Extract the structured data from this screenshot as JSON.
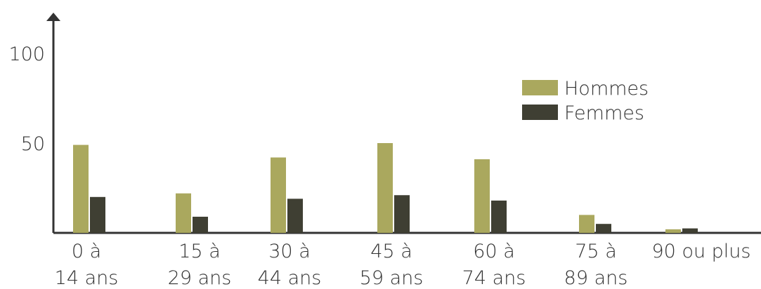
{
  "chart_data": {
    "type": "bar",
    "categories": [
      [
        "0 à",
        "14 ans"
      ],
      [
        "15 à",
        "29 ans"
      ],
      [
        "30 à",
        "44 ans"
      ],
      [
        "45 à",
        "59 ans"
      ],
      [
        "60 à",
        "74 ans"
      ],
      [
        "75 à",
        "89 ans"
      ],
      [
        "90 ou plus"
      ]
    ],
    "series": [
      {
        "name": "Hommes",
        "color": "#aaa85e",
        "values": [
          49,
          22,
          42,
          50,
          41,
          10,
          2
        ]
      },
      {
        "name": "Femmes",
        "color": "#3f3f33",
        "values": [
          20,
          9,
          19,
          21,
          18,
          5,
          2.5
        ]
      }
    ],
    "yticks": [
      50,
      100
    ],
    "ylim": [
      0,
      120
    ],
    "title": "",
    "xlabel": "",
    "ylabel": "",
    "legend_position": "top-right",
    "grid": false
  }
}
